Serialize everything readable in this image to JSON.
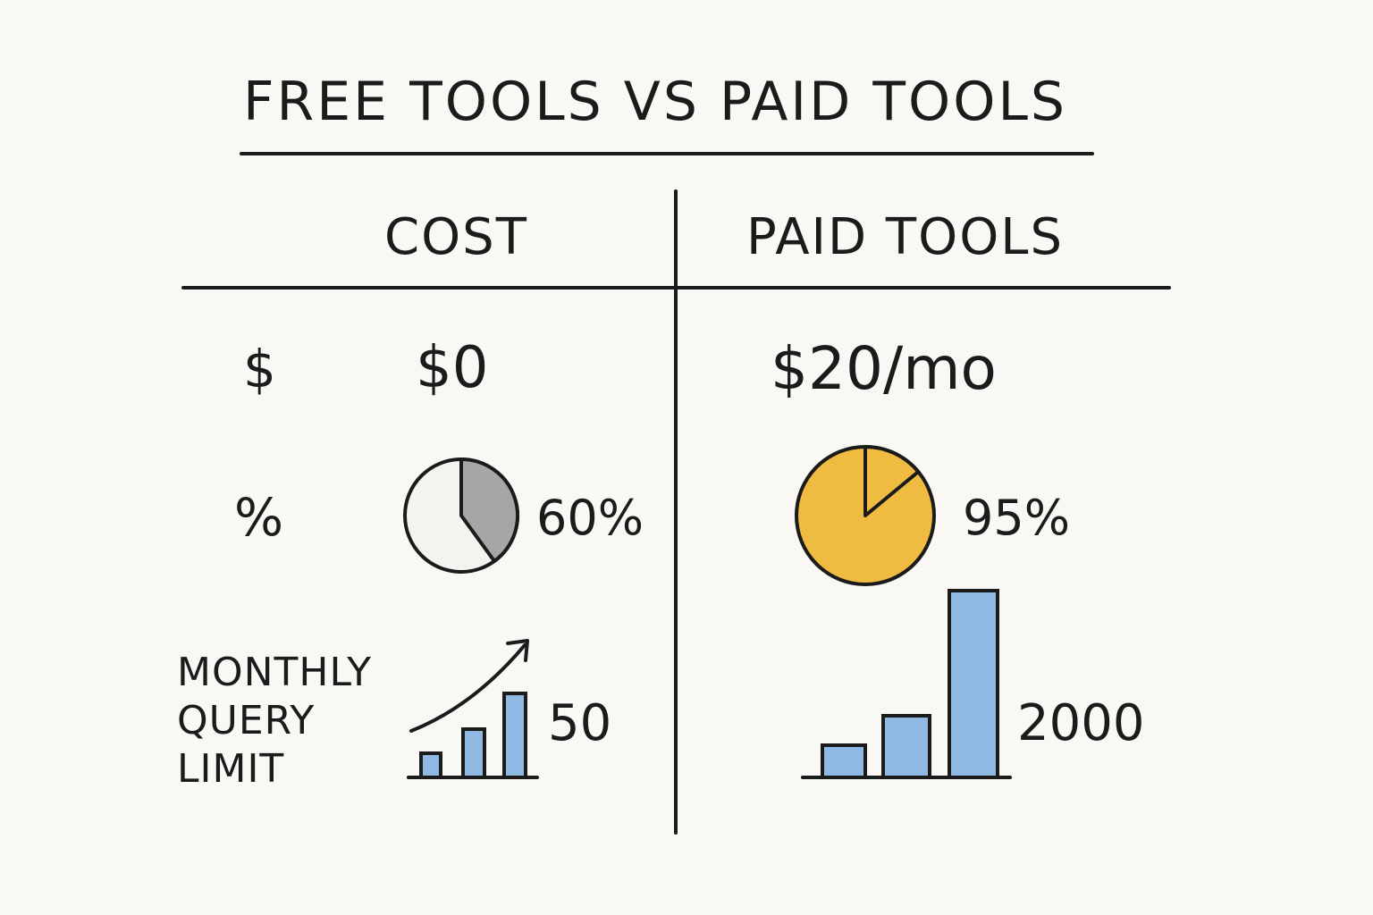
{
  "title": "FREE TOOLS VS PAID TOOLS",
  "columns": {
    "left_header": "COST",
    "right_header": "PAID TOOLS"
  },
  "rows": {
    "cost": {
      "symbol": "$",
      "free_value": "$0",
      "paid_value": "$20/mo"
    },
    "accuracy": {
      "symbol": "%",
      "free_value": "60%",
      "paid_value": "95%",
      "free_fraction": 0.6,
      "paid_fraction": 0.95
    },
    "query_limit": {
      "label_lines": [
        "MONTHLY",
        "QUERY",
        "LIMIT"
      ],
      "free_value": "50",
      "paid_value": "2000"
    }
  },
  "colors": {
    "ink": "#1b1b1b",
    "background": "#faf8f4",
    "free_pie_fill": "#a6a6a4",
    "free_pie_bg": "#f4f3f0",
    "paid_pie_fill": "#efbb41",
    "bar_fill": "#8fb9e3"
  },
  "icons": {
    "free_trend": "trend-arrow-icon",
    "free_bars": "bar-chart-icon",
    "paid_bars": "bar-chart-icon"
  }
}
